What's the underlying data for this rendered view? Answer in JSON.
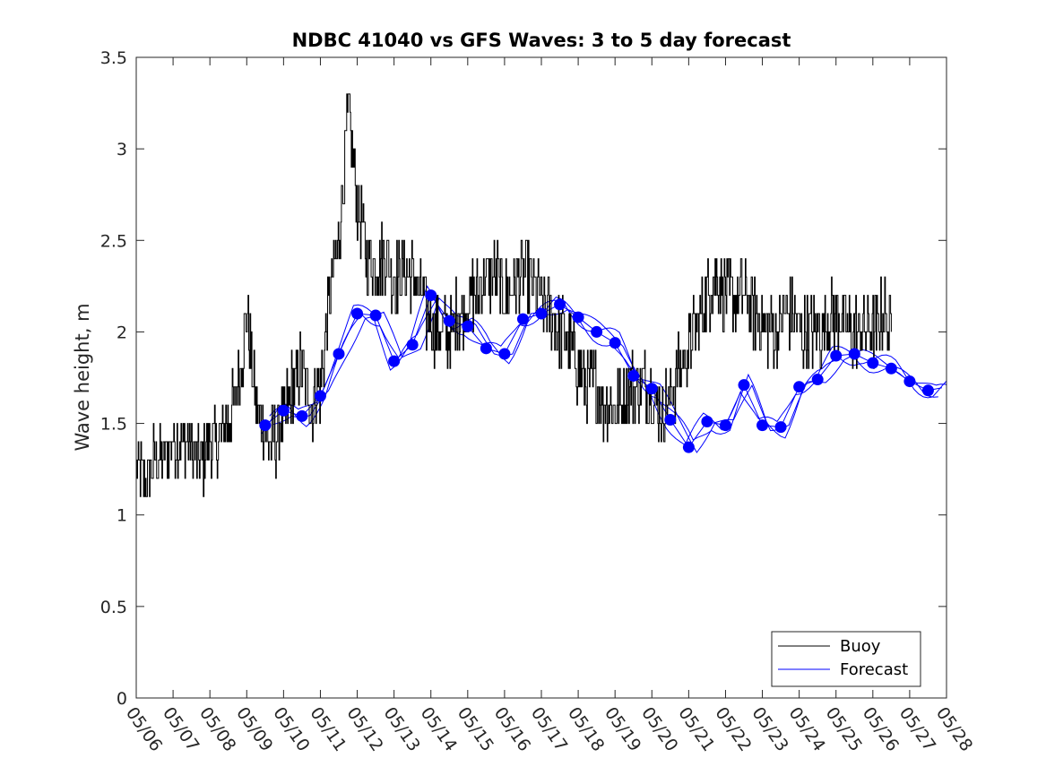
{
  "chart_data": {
    "type": "line",
    "title": "NDBC 41040 vs GFS Waves: 3 to 5 day forecast",
    "xlabel": "",
    "ylabel": "Wave height, m",
    "ylim": [
      0,
      3.5
    ],
    "xlim": [
      "05/06",
      "05/28"
    ],
    "yticks": [
      "0",
      "0.5",
      "1",
      "1.5",
      "2",
      "2.5",
      "3",
      "3.5"
    ],
    "xticks": [
      "05/06",
      "05/07",
      "05/08",
      "05/09",
      "05/10",
      "05/11",
      "05/12",
      "05/13",
      "05/14",
      "05/15",
      "05/16",
      "05/17",
      "05/18",
      "05/19",
      "05/20",
      "05/21",
      "05/22",
      "05/23",
      "05/24",
      "05/25",
      "05/26",
      "05/27",
      "05/28"
    ],
    "grid": false,
    "legend_position": "bottom-right",
    "colors": {
      "buoy": "#000000",
      "forecast": "#0000ff",
      "markers": "#0000ff"
    },
    "series": [
      {
        "name": "Buoy",
        "x_days_from_start": [
          0,
          0.25,
          0.5,
          0.75,
          1,
          1.25,
          1.5,
          1.75,
          2,
          2.25,
          2.5,
          2.75,
          3,
          3.25,
          3.5,
          3.75,
          4,
          4.25,
          4.5,
          4.75,
          5,
          5.25,
          5.5,
          5.75,
          6,
          6.25,
          6.5,
          6.75,
          7,
          7.25,
          7.5,
          7.75,
          8,
          8.25,
          8.5,
          8.75,
          9,
          9.25,
          9.5,
          9.75,
          10,
          10.25,
          10.5,
          10.75,
          11,
          11.25,
          11.5,
          11.75,
          12,
          12.25,
          12.5,
          12.75,
          13,
          13.25,
          13.5,
          13.75,
          14,
          14.25,
          14.5,
          14.75,
          15,
          15.25,
          15.5,
          15.75,
          16,
          16.25,
          16.5,
          16.75,
          17,
          17.25,
          17.5,
          17.75,
          18,
          18.25,
          18.5,
          18.75,
          19,
          19.25,
          19.5,
          19.75,
          20,
          20.25,
          20.5
        ],
        "values": [
          1.25,
          1.2,
          1.3,
          1.35,
          1.35,
          1.4,
          1.35,
          1.3,
          1.4,
          1.4,
          1.5,
          1.7,
          2.1,
          1.6,
          1.45,
          1.4,
          1.5,
          1.7,
          1.8,
          1.6,
          1.7,
          2.2,
          2.5,
          3.2,
          2.7,
          2.4,
          2.35,
          2.4,
          2.3,
          2.35,
          2.3,
          2.2,
          2.05,
          1.95,
          2.0,
          2.1,
          2.15,
          2.2,
          2.35,
          2.3,
          2.2,
          2.25,
          2.3,
          2.25,
          2.15,
          2.1,
          2.0,
          1.95,
          1.8,
          1.7,
          1.7,
          1.6,
          1.6,
          1.65,
          1.7,
          1.75,
          1.65,
          1.55,
          1.65,
          1.8,
          1.9,
          2.05,
          2.2,
          2.3,
          2.2,
          2.15,
          2.2,
          2.1,
          2.05,
          2.0,
          2.05,
          2.1,
          2.05,
          2.0,
          2.0,
          2.05,
          2.1,
          2.05,
          2.0,
          2.05,
          2.0,
          2.1,
          2.0
        ]
      },
      {
        "name": "Forecast",
        "x_days_from_start": [
          3.5,
          4.0,
          4.5,
          5.0,
          5.5,
          6.0,
          6.5,
          7.0,
          7.5,
          8.0,
          8.5,
          9.0,
          9.5,
          10.0,
          10.5,
          11.0,
          11.5,
          12.0,
          12.5,
          13.0,
          13.5,
          14.0,
          14.5,
          15.0,
          15.5,
          16.0,
          16.5,
          17.0,
          17.5,
          18.0,
          18.5,
          19.0,
          19.5,
          20.0,
          20.5,
          21.0,
          21.5,
          22.0
        ],
        "values": [
          1.49,
          1.57,
          1.54,
          1.65,
          1.88,
          2.1,
          2.09,
          1.84,
          1.93,
          2.2,
          2.06,
          2.03,
          1.91,
          1.88,
          2.07,
          2.1,
          2.15,
          2.08,
          2.0,
          1.94,
          1.76,
          1.69,
          1.52,
          1.37,
          1.51,
          1.49,
          1.71,
          1.49,
          1.48,
          1.7,
          1.74,
          1.87,
          1.88,
          1.83,
          1.8,
          1.73,
          1.68,
          1.7
        ]
      }
    ],
    "markers": {
      "x_days_from_start": [
        3.5,
        4.0,
        4.5,
        5.0,
        5.5,
        6.0,
        6.5,
        7.0,
        7.5,
        8.0,
        8.5,
        9.0,
        9.5,
        10.0,
        10.5,
        11.0,
        11.5,
        12.0,
        12.5,
        13.0,
        13.5,
        14.0,
        14.5,
        15.0,
        15.5,
        16.0,
        16.5,
        17.0,
        17.5,
        18.0,
        18.5,
        19.0,
        19.5,
        20.0,
        20.5,
        21.0,
        21.5
      ],
      "values": [
        1.49,
        1.57,
        1.54,
        1.65,
        1.88,
        2.1,
        2.09,
        1.84,
        1.93,
        2.2,
        2.06,
        2.03,
        1.91,
        1.88,
        2.07,
        2.1,
        2.15,
        2.08,
        2.0,
        1.94,
        1.76,
        1.69,
        1.52,
        1.37,
        1.51,
        1.49,
        1.71,
        1.49,
        1.48,
        1.7,
        1.74,
        1.87,
        1.88,
        1.83,
        1.8,
        1.73,
        1.68
      ]
    }
  }
}
